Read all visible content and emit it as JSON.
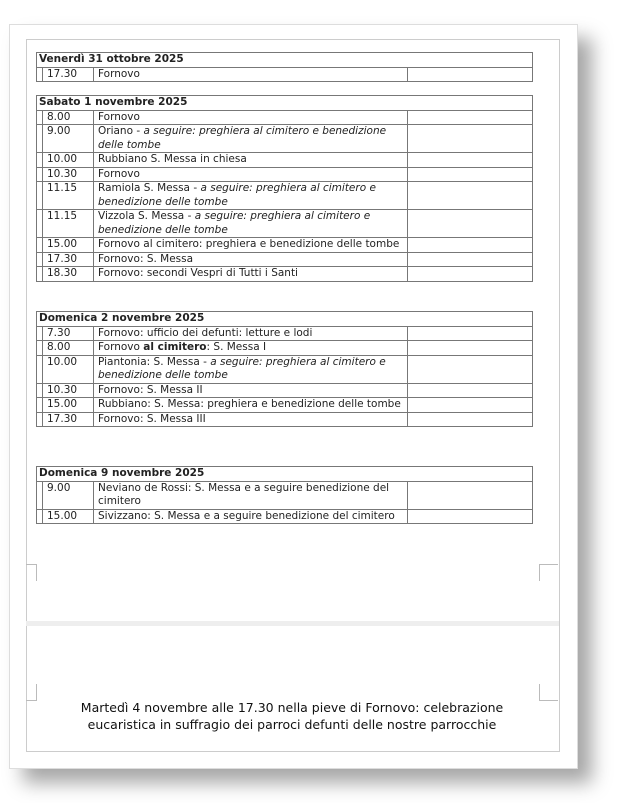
{
  "days": [
    {
      "title": "Venerdì 31 ottobre 2025",
      "rows": [
        {
          "time": "17.30",
          "desc": [
            {
              "text": "Fornovo",
              "style": "normal"
            }
          ]
        }
      ]
    },
    {
      "title": "Sabato 1 novembre 2025",
      "rows": [
        {
          "time": "8.00",
          "desc": [
            {
              "text": "Fornovo",
              "style": "normal"
            }
          ]
        },
        {
          "time": "9.00",
          "desc": [
            {
              "text": "Oriano - ",
              "style": "normal"
            },
            {
              "text": "a seguire: preghiera al cimitero e benedizione delle tombe",
              "style": "italic"
            }
          ]
        },
        {
          "time": "10.00",
          "desc": [
            {
              "text": "Rubbiano S. Messa in chiesa",
              "style": "normal"
            }
          ]
        },
        {
          "time": "10.30",
          "desc": [
            {
              "text": "Fornovo",
              "style": "normal"
            }
          ]
        },
        {
          "time": "11.15",
          "desc": [
            {
              "text": "Ramiola S. Messa - ",
              "style": "normal"
            },
            {
              "text": "a seguire: preghiera al cimitero e benedizione delle tombe",
              "style": "italic"
            }
          ]
        },
        {
          "time": "11.15",
          "desc": [
            {
              "text": "Vizzola S. Messa - ",
              "style": "normal"
            },
            {
              "text": "a seguire: preghiera al cimitero e benedizione delle tombe",
              "style": "italic"
            }
          ]
        },
        {
          "time": "15.00",
          "desc": [
            {
              "text": "Fornovo al cimitero: preghiera e benedizione delle tombe",
              "style": "normal"
            }
          ]
        },
        {
          "time": "17.30",
          "desc": [
            {
              "text": "Fornovo: S. Messa",
              "style": "normal"
            }
          ]
        },
        {
          "time": "18.30",
          "desc": [
            {
              "text": "Fornovo: secondi Vespri di Tutti i Santi",
              "style": "normal"
            }
          ]
        }
      ]
    },
    {
      "title": "Domenica 2 novembre 2025",
      "rows": [
        {
          "time": "7.30",
          "desc": [
            {
              "text": "Fornovo: ufficio dei defunti: letture e lodi",
              "style": "normal"
            }
          ]
        },
        {
          "time": "8.00",
          "desc": [
            {
              "text": "Fornovo ",
              "style": "normal"
            },
            {
              "text": "al cimitero",
              "style": "bold"
            },
            {
              "text": ": S. Messa I",
              "style": "normal"
            }
          ]
        },
        {
          "time": "10.00",
          "desc": [
            {
              "text": "Piantonia: S. Messa - ",
              "style": "normal"
            },
            {
              "text": "a seguire: preghiera al cimitero e benedizione delle tombe",
              "style": "italic"
            }
          ]
        },
        {
          "time": "10.30",
          "desc": [
            {
              "text": "Fornovo: S. Messa II",
              "style": "normal"
            }
          ]
        },
        {
          "time": "15.00",
          "desc": [
            {
              "text": "Rubbiano: S. Messa: preghiera e benedizione delle tombe",
              "style": "normal"
            }
          ]
        },
        {
          "time": "17.30",
          "desc": [
            {
              "text": "Fornovo: S. Messa III",
              "style": "normal"
            }
          ]
        }
      ]
    },
    {
      "title": "Domenica 9 novembre 2025",
      "rows": [
        {
          "time": "9.00",
          "desc": [
            {
              "text": "Neviano de Rossi: S. Messa e a seguire benedizione del cimitero",
              "style": "normal"
            }
          ]
        },
        {
          "time": "15.00",
          "desc": [
            {
              "text": "Sivizzano: S. Messa e a seguire benedizione del cimitero",
              "style": "normal"
            }
          ]
        }
      ]
    }
  ],
  "note": {
    "line1": "Martedì 4 novembre alle 17.30 nella pieve di Fornovo: celebrazione",
    "line2": "eucaristica in suffragio dei parroci defunti delle nostre parrocchie"
  }
}
